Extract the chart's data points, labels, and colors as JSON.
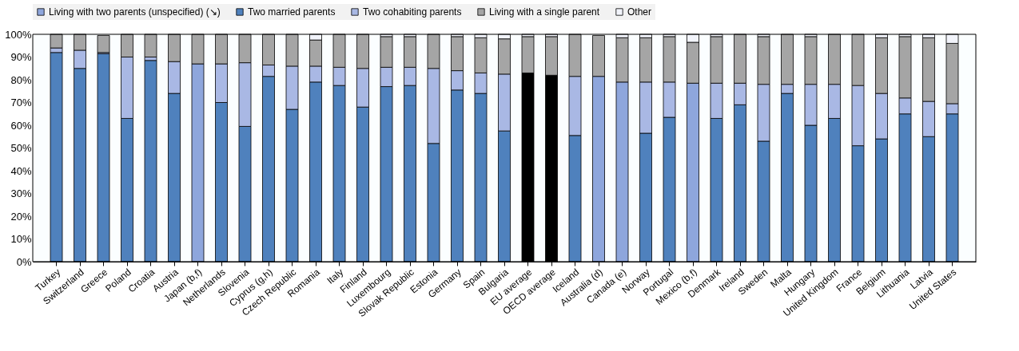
{
  "chart_data": {
    "type": "bar",
    "stacked": true,
    "legend": "top",
    "grid": false,
    "categories": [
      "Turkey",
      "Switzerland",
      "Greece",
      "Poland",
      "Croatia",
      "Austria",
      "Japan (b,f)",
      "Netherlands",
      "Slovenia",
      "Cyprus (g,h)",
      "Czech Republic",
      "Romania",
      "Italy",
      "Finland",
      "Luxembourg",
      "Slovak Republic",
      "Estonia",
      "Germany",
      "Spain",
      "Bulgaria",
      "EU average",
      "OECD average",
      "Iceland",
      "Australia (d)",
      "Canada (e)",
      "Norway",
      "Portugal",
      "Mexico (b,f)",
      "Denmark",
      "Ireland",
      "Sweden",
      "Malta",
      "Hungary",
      "United Kingdom",
      "France",
      "Belgium",
      "Lithuania",
      "Latvia",
      "United States"
    ],
    "ylim": [
      0,
      100
    ],
    "yticks": [
      {
        "value": 0,
        "label": "0%"
      },
      {
        "value": 10,
        "label": "10%"
      },
      {
        "value": 20,
        "label": "20%"
      },
      {
        "value": 30,
        "label": "30%"
      },
      {
        "value": 40,
        "label": "40%"
      },
      {
        "value": 50,
        "label": "50%"
      },
      {
        "value": 60,
        "label": "60%"
      },
      {
        "value": 70,
        "label": "70%"
      },
      {
        "value": 80,
        "label": "80%"
      },
      {
        "value": 90,
        "label": "90%"
      },
      {
        "value": 100,
        "label": "100%"
      }
    ],
    "series": [
      {
        "name": "Living with two parents (unspecified) (↘)",
        "color": "#8ea6dc",
        "colors": [
          "#8ea6dc",
          "#8ea6dc",
          "#8ea6dc",
          "#8ea6dc",
          "#8ea6dc",
          "#8ea6dc",
          "#8ea6dc",
          "#8ea6dc",
          "#8ea6dc",
          "#8ea6dc",
          "#8ea6dc",
          "#8ea6dc",
          "#8ea6dc",
          "#8ea6dc",
          "#8ea6dc",
          "#8ea6dc",
          "#8ea6dc",
          "#8ea6dc",
          "#8ea6dc",
          "#8ea6dc",
          "#000000",
          "#000000",
          "#8ea6dc",
          "#8ea6dc",
          "#8ea6dc",
          "#8ea6dc",
          "#8ea6dc",
          "#8ea6dc",
          "#8ea6dc",
          "#8ea6dc",
          "#8ea6dc",
          "#8ea6dc",
          "#8ea6dc",
          "#8ea6dc",
          "#8ea6dc",
          "#8ea6dc",
          "#8ea6dc",
          "#8ea6dc",
          "#8ea6dc"
        ],
        "values": [
          null,
          null,
          null,
          null,
          null,
          null,
          87,
          null,
          null,
          null,
          null,
          null,
          null,
          null,
          null,
          null,
          null,
          null,
          null,
          null,
          83,
          82,
          null,
          81.5,
          79,
          null,
          null,
          78.5,
          null,
          null,
          null,
          null,
          null,
          null,
          null,
          null,
          null,
          null,
          null
        ]
      },
      {
        "name": "Two married parents",
        "color": "#4f81bd",
        "values": [
          92,
          85,
          91.5,
          63,
          88.5,
          74,
          null,
          70,
          59.5,
          81.5,
          67,
          79,
          77.5,
          68,
          77,
          77.5,
          52,
          75.5,
          74,
          57.5,
          null,
          null,
          55.5,
          null,
          null,
          56.5,
          63.5,
          null,
          63,
          69,
          53,
          74,
          60,
          63,
          51,
          54,
          65,
          55,
          65
        ]
      },
      {
        "name": "Two cohabiting parents",
        "color": "#a9b8e4",
        "values": [
          2,
          8,
          0.5,
          27,
          1.5,
          14,
          null,
          17,
          28,
          5,
          19,
          7,
          8,
          17,
          8.5,
          8,
          33,
          8.5,
          9,
          25,
          null,
          null,
          26,
          null,
          null,
          22.5,
          15.5,
          null,
          15.5,
          9.5,
          25,
          4,
          18,
          15,
          26.5,
          20,
          7,
          15.5,
          4.5
        ]
      },
      {
        "name": "Living with a single parent",
        "color": "#a5a5a5",
        "values": [
          6,
          7,
          7.5,
          10,
          10,
          12,
          13,
          13,
          12.5,
          13.5,
          14,
          11.5,
          14.5,
          15,
          13.5,
          13.5,
          15,
          15,
          15.5,
          15.5,
          16,
          17,
          18.5,
          18,
          19.5,
          19.5,
          20,
          18,
          20.5,
          21.5,
          21,
          22,
          21,
          22,
          22.5,
          24.5,
          27,
          28,
          26.5
        ]
      },
      {
        "name": "Other",
        "color": "#f2f4fb",
        "values": [
          null,
          null,
          null,
          null,
          null,
          null,
          null,
          null,
          null,
          null,
          null,
          2.5,
          null,
          null,
          1,
          1,
          null,
          1,
          1.5,
          2,
          1,
          1,
          null,
          null,
          1.5,
          1.5,
          1,
          3.5,
          1,
          null,
          1,
          null,
          1,
          null,
          null,
          1.5,
          1,
          1.5,
          4
        ]
      }
    ]
  }
}
